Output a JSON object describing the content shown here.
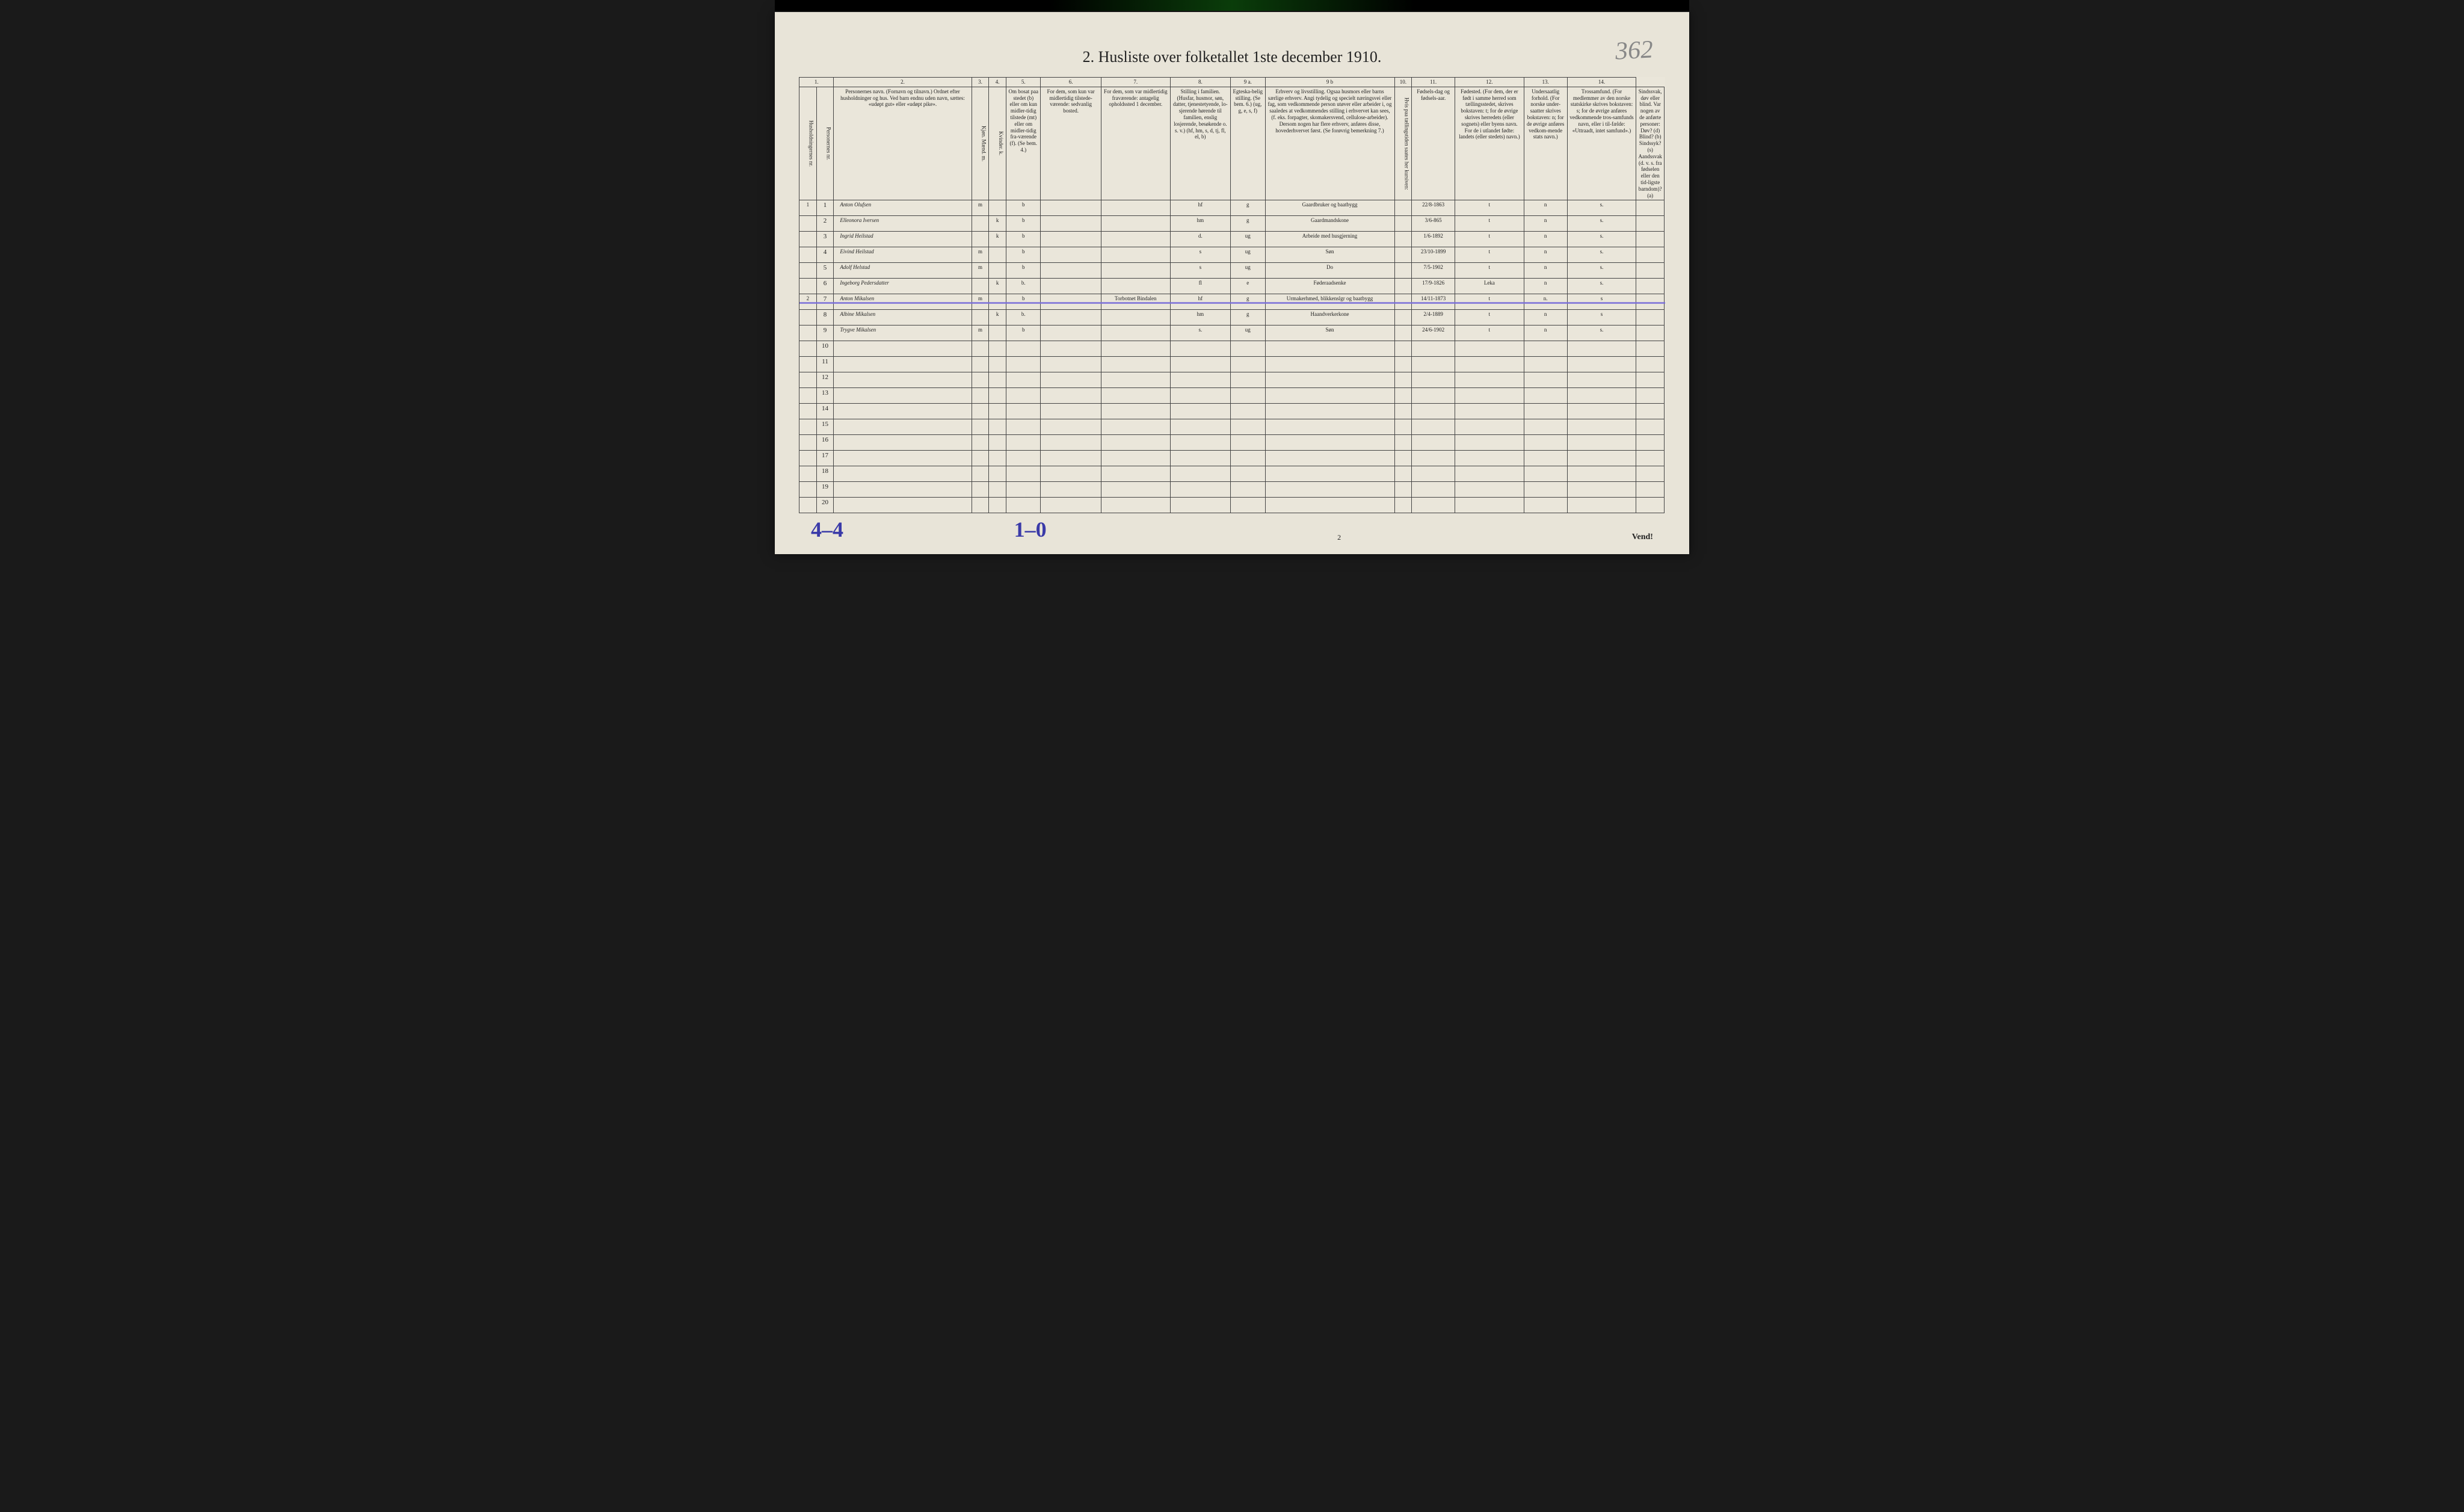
{
  "page": {
    "title": "2. Husliste over folketallet 1ste december 1910.",
    "pencil_top_right": "362",
    "bottom_left_ann": "4–4",
    "bottom_mid_ann": "1–0",
    "page_number": "2",
    "vend": "Vend!",
    "background_color": "#e8e4d8",
    "border_color": "#444444",
    "header_text_color": "#222222",
    "handwriting_color": "#3a3a3a",
    "blue_annotation_color": "#3a3aa8",
    "strike_color": "#7a6fd8"
  },
  "columns": {
    "nums": [
      "1.",
      "2.",
      "3.",
      "4.",
      "5.",
      "6.",
      "7.",
      "8.",
      "9 a.",
      "9 b",
      "10.",
      "11.",
      "12.",
      "13.",
      "14."
    ],
    "headers": [
      "Husholdningernes nr.",
      "Personernes nr.",
      "Personernes navn.\n(Fornavn og tilnavn.)\nOrdnet efter husholdninger og hus.\nVed barn endnu uden navn, sættes: «udøpt gut» eller «udøpt pike».",
      "Kjøn.\nMænd. m.",
      "Kvinder. k.",
      "Om bosat paa stedet (b) eller om kun midler-tidig tilstede (mt) eller om midler-tidig fra-værende (f). (Se bem. 4.)",
      "For dem, som kun var midlertidig tilstede-værende:\nsedvanlig bosted.",
      "For dem, som var midlertidig fraværende:\nantagelig opholdssted 1 december.",
      "Stilling i familien.\n(Husfar, husmor, søn, datter, tjenestetyende, lo-sjerende hørende til familien, enslig losjerende, besøkende o. s. v.)\n(hf, hm, s, d, tj, fl, el, b)",
      "Egteska-belig stilling.\n(Se bem. 6.)\n(ug, g, e, s, f)",
      "Erhverv og livsstilling.\nOgsaa husmors eller barns særlige erhverv. Angi tydelig og specielt næringsvei eller fag, som vedkommende person utøver eller arbeider i, og saaledes at vedkommendes stilling i erhvervet kan sees, (f. eks. forpagter, skomakersvend, cellulose-arbeider). Dersom nogen har flere erhverv, anføres disse, hovederhvervet først. (Se forøvrig bemerkning 7.)",
      "Hvis paa tællingstiden saates her kursiven:",
      "Fødsels-dag og fødsels-aar.",
      "Fødested.\n(For dem, der er født i samme herred som tællingsstedet, skrives bokstaven: t; for de øvrige skrives herredets (eller sognets) eller byens navn. For de i utlandet fødte: landets (eller stedets) navn.)",
      "Undersaatlig forhold.\n(For norske under-saatter skrives bokstaven: n; for de øvrige anføres vedkom-mende stats navn.)",
      "Trossamfund.\n(For medlemmer av den norske statskirke skrives bokstaven: s; for de øvrige anføres vedkommende tros-samfunds navn, eller i til-fælde: «Uttraadt, intet samfund».)",
      "Sindssvak, døv eller blind.\nVar nogen av de anførte personer: Døv? (d) Blind? (b) Sindssyk? (s) Aandssvak (d. v. s. fra fødselen eller den tid-ligste barndom)? (a)"
    ]
  },
  "rows": [
    {
      "hh": "1",
      "pn": "1",
      "name": "Anton Olufsen",
      "m": "m",
      "k": "",
      "res": "b",
      "col5": "",
      "col6": "",
      "rel": "hf",
      "mar": "g",
      "occ": "Gaardbruker og baatbygg",
      "col9b": "",
      "dob": "22/8-1863",
      "birthplace": "t",
      "nat": "n",
      "rel2": "s.",
      "col14": ""
    },
    {
      "hh": "",
      "pn": "2",
      "name": "Elleonora Iversen",
      "m": "",
      "k": "k",
      "res": "b",
      "col5": "",
      "col6": "",
      "rel": "hm",
      "mar": "g",
      "occ": "Gaardmandskone",
      "col9b": "",
      "dob": "3/6-865",
      "birthplace": "t",
      "nat": "n",
      "rel2": "s.",
      "col14": ""
    },
    {
      "hh": "",
      "pn": "3",
      "name": "Ingrid Heilstad",
      "m": "",
      "k": "k",
      "res": "b",
      "col5": "",
      "col6": "",
      "rel": "d.",
      "mar": "ug",
      "occ": "Arbeide med husgjerning",
      "col9b": "",
      "dob": "1/6-1892",
      "birthplace": "t",
      "nat": "n",
      "rel2": "s.",
      "col14": ""
    },
    {
      "hh": "",
      "pn": "4",
      "name": "Eivind Heilstad",
      "m": "m",
      "k": "",
      "res": "b",
      "col5": "",
      "col6": "",
      "rel": "s",
      "mar": "ug",
      "occ": "Søn",
      "col9b": "",
      "dob": "23/10-1899",
      "birthplace": "t",
      "nat": "n",
      "rel2": "s.",
      "col14": ""
    },
    {
      "hh": "",
      "pn": "5",
      "name": "Adolf Helstad",
      "m": "m",
      "k": "",
      "res": "b",
      "col5": "",
      "col6": "",
      "rel": "s",
      "mar": "ug",
      "occ": "Do",
      "col9b": "",
      "dob": "7/5-1902",
      "birthplace": "t",
      "nat": "n",
      "rel2": "s.",
      "col14": ""
    },
    {
      "hh": "",
      "pn": "6",
      "name": "Ingeborg Pedersdatter",
      "m": "",
      "k": "k",
      "res": "b.",
      "col5": "",
      "col6": "",
      "rel": "fl",
      "mar": "e",
      "occ": "Føderaadsenke",
      "col9b": "",
      "dob": "17/9-1826",
      "birthplace": "Leka",
      "nat": "n",
      "rel2": "s.",
      "col14": ""
    },
    {
      "hh": "2",
      "pn": "7",
      "name": "Anton Mikalsen",
      "m": "m",
      "k": "",
      "res": "b",
      "col5": "",
      "col6": "Torbotnet Bindalen",
      "rel": "hf",
      "mar": "g",
      "occ": "Urmakerhmed, blikkenslgr og baatbygg",
      "col9b": "",
      "dob": "14/11-1873",
      "birthplace": "t",
      "nat": "n.",
      "rel2": "s",
      "col14": "",
      "strike": true
    },
    {
      "hh": "",
      "pn": "8",
      "name": "Albine Mikalsen",
      "m": "",
      "k": "k",
      "res": "b.",
      "col5": "",
      "col6": "",
      "rel": "hm",
      "mar": "g",
      "occ": "Haandverkerkone",
      "col9b": "",
      "dob": "2/4-1889",
      "birthplace": "t",
      "nat": "n",
      "rel2": "s",
      "col14": ""
    },
    {
      "hh": "",
      "pn": "9",
      "name": "Trygve Mikalsen",
      "m": "m",
      "k": "",
      "res": "b",
      "col5": "",
      "col6": "",
      "rel": "s.",
      "mar": "ug",
      "occ": "Søn",
      "col9b": "",
      "dob": "24/6-1902",
      "birthplace": "t",
      "nat": "n",
      "rel2": "s.",
      "col14": ""
    }
  ],
  "empty_row_count": 11,
  "row_nums_empty": [
    "10",
    "11",
    "12",
    "13",
    "14",
    "15",
    "16",
    "17",
    "18",
    "19",
    "20"
  ],
  "col_widths_pct": [
    2,
    2,
    16,
    2,
    2,
    4,
    7,
    8,
    7,
    4,
    15,
    2,
    5,
    8,
    5,
    8,
    8
  ]
}
